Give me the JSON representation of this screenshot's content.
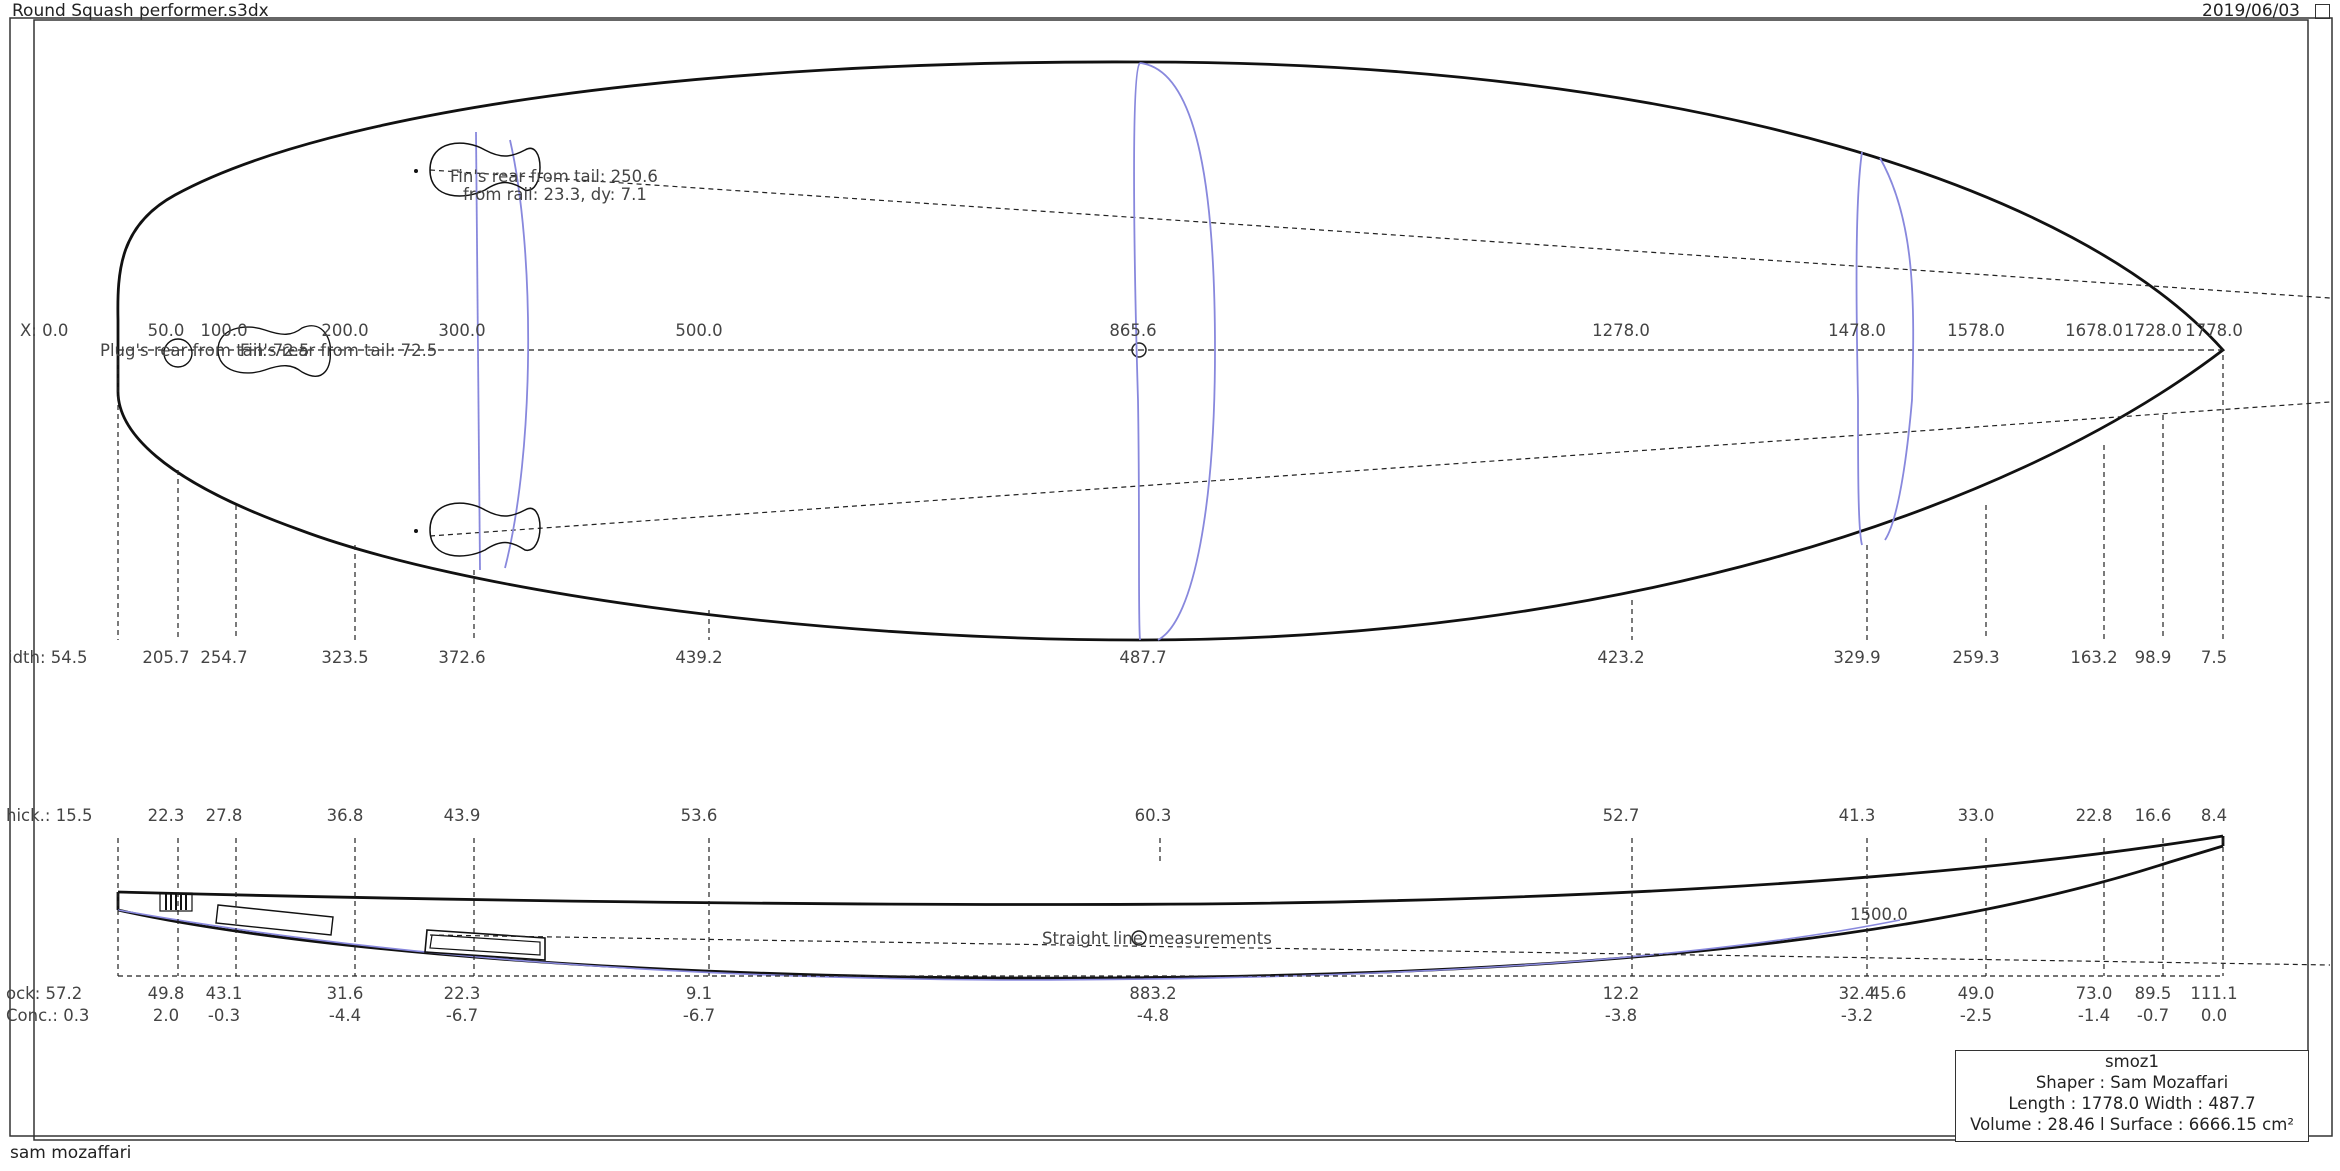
{
  "window": {
    "title": "Round Squash performer.s3dx",
    "date": "2019/06/03"
  },
  "footer": {
    "user": "sam mozaffari"
  },
  "top_view": {
    "x_prefix": "X: 0.0",
    "x_labels": [
      "50.0",
      "100.0",
      "200.0",
      "300.0",
      "500.0",
      "865.6",
      "1278.0",
      "1478.0",
      "1578.0",
      "1678.0",
      "1728.0",
      "1778.0"
    ],
    "width_prefix": "idth: 54.5",
    "widths": [
      "205.7",
      "254.7",
      "323.5",
      "372.6",
      "439.2",
      "487.7",
      "423.2",
      "329.9",
      "259.3",
      "163.2",
      "98.9",
      "7.5"
    ],
    "fin_rear_label": "Fin's rear from tail: 250.6",
    "fin_rail_label": "from rail: 23.3, dy: 7.1",
    "plug_label": "Plug's rear from tail: 72.5",
    "overlap_label": "Fin's rear from tail: 72.5"
  },
  "profile_view": {
    "thick_prefix": "hick.: 15.5",
    "thicknesses": [
      "22.3",
      "27.8",
      "36.8",
      "43.9",
      "53.6",
      "60.3",
      "52.7",
      "41.3",
      "33.0",
      "22.8",
      "16.6",
      "8.4"
    ],
    "rocker_prefix": "ock: 57.2",
    "rockers": [
      "49.8",
      "43.1",
      "31.6",
      "22.3",
      "9.1",
      "883.2",
      "12.2",
      "32.4",
      "45.6",
      "49.0",
      "73.0",
      "89.5",
      "111.1"
    ],
    "conc_prefix": "Conc.: 0.3",
    "concaves": [
      "2.0",
      "-0.3",
      "-4.4",
      "-6.7",
      "-6.7",
      "-4.8",
      "-3.8",
      "-3.2",
      "-2.5",
      "-1.4",
      "-0.7",
      "0.0"
    ],
    "straight_line_label": "Straight line measurements",
    "mark_1500": "1500.0"
  },
  "info_box": {
    "name": "smoz1",
    "shaper": "Shaper : Sam Mozaffari",
    "dims": "Length : 1778.0 Width  : 487.7",
    "volume": "Volume : 28.46 l   Surface : 6666.15 cm²"
  },
  "colors": {
    "outline": "#111111",
    "construction": "#8888dd",
    "text": "#444444"
  }
}
